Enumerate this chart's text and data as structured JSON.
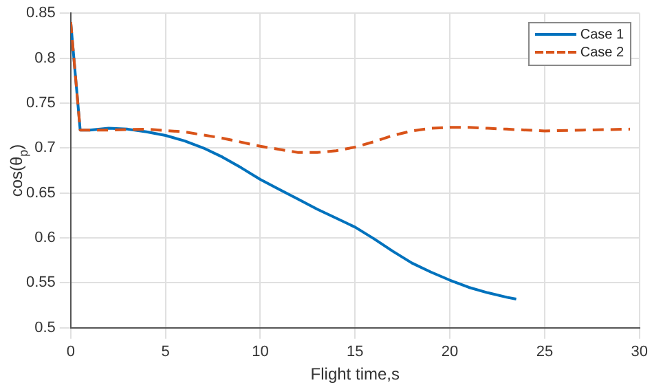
{
  "chart_data": {
    "type": "line",
    "xlabel": "Flight time,s",
    "ylabel": "cos(θ$_{p}$)",
    "xlim": [
      0,
      30
    ],
    "xticks": [
      0,
      5,
      10,
      15,
      20,
      25,
      30
    ],
    "ylim": [
      0.5,
      0.85
    ],
    "yticks": [
      0.5,
      0.55,
      0.6,
      0.65,
      0.7,
      0.75,
      0.8,
      0.85
    ],
    "grid": true,
    "legend": "top right",
    "marker": "none",
    "series": [
      {
        "name": "Case 1",
        "color": "#0072bd",
        "line_style": "solid",
        "x": [
          0,
          0.5,
          1,
          2,
          3,
          4,
          5,
          6,
          7,
          8,
          9,
          10,
          11,
          12,
          13,
          14,
          15,
          16,
          17,
          18,
          19,
          20,
          21,
          22,
          23,
          23.5
        ],
        "values": [
          0.84,
          0.72,
          0.72,
          0.722,
          0.721,
          0.718,
          0.714,
          0.708,
          0.7,
          0.69,
          0.678,
          0.665,
          0.654,
          0.643,
          0.632,
          0.622,
          0.612,
          0.599,
          0.585,
          0.572,
          0.562,
          0.553,
          0.545,
          0.539,
          0.534,
          0.532
        ]
      },
      {
        "name": "Case 2",
        "color": "#d95319",
        "line_style": "dashed",
        "x": [
          0,
          0.5,
          2,
          4,
          6,
          8,
          10,
          12,
          13,
          14,
          15,
          16,
          17,
          18,
          19,
          20,
          21,
          22,
          23,
          25,
          27,
          29.5
        ],
        "values": [
          0.84,
          0.72,
          0.72,
          0.721,
          0.718,
          0.711,
          0.702,
          0.695,
          0.695,
          0.697,
          0.701,
          0.707,
          0.714,
          0.719,
          0.722,
          0.723,
          0.723,
          0.722,
          0.721,
          0.719,
          0.72,
          0.721
        ]
      }
    ]
  }
}
